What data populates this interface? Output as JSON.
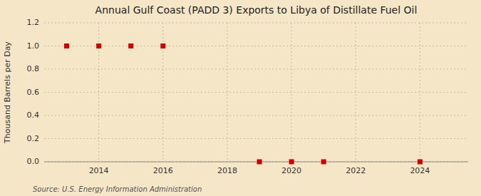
{
  "chart_data": {
    "type": "scatter",
    "title": "Annual Gulf Coast (PADD 3) Exports to Libya of Distillate Fuel Oil",
    "ylabel": "Thousand Barrels per Day",
    "annotations": [
      "Source: U.S. Energy Information Administration"
    ],
    "x": [
      2013,
      2014,
      2015,
      2016,
      2019,
      2020,
      2021,
      2024
    ],
    "values": [
      1.0,
      1.0,
      1.0,
      1.0,
      0.0,
      0.0,
      0.0,
      0.0
    ],
    "color": "#cc0000",
    "marker": "square",
    "xlim": [
      2012.3,
      2025.5
    ],
    "ylim": [
      0.0,
      1.2
    ],
    "xticks": [
      2014,
      2016,
      2018,
      2020,
      2022,
      2024
    ],
    "yticks": [
      {
        "value": 0.0,
        "label": "0.0"
      },
      0.2,
      0.4,
      0.6,
      0.8,
      {
        "value": 1.0,
        "label": "1.0"
      },
      1.2
    ],
    "grid": true
  }
}
